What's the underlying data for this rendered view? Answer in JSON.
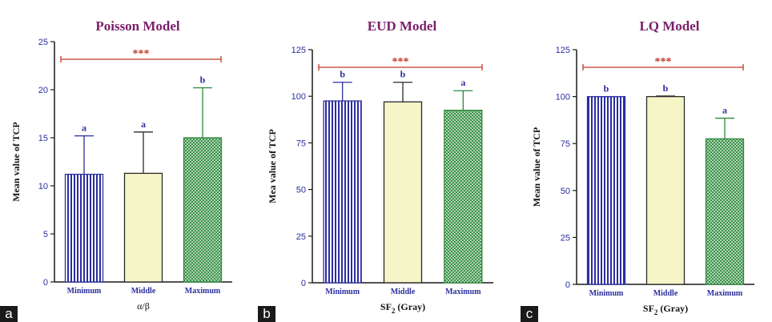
{
  "panels": [
    {
      "letter": "a"
    },
    {
      "letter": "b"
    },
    {
      "letter": "c"
    }
  ],
  "chart_data": [
    {
      "type": "bar",
      "title": "Poisson Model",
      "xlabel": "α/β",
      "ylabel": "Mean value of TCP",
      "categories": [
        "Minimum",
        "Middle",
        "Maximum"
      ],
      "values": [
        11.2,
        11.3,
        15.0
      ],
      "errors": [
        4.0,
        4.3,
        5.2
      ],
      "letters": [
        "a",
        "a",
        "b"
      ],
      "significance": "***",
      "ylim": [
        0,
        25
      ],
      "yticks": [
        0,
        5,
        10,
        15,
        20,
        25
      ],
      "bar_fills": [
        "stripe-blue",
        "plain-cream",
        "hatch-green"
      ],
      "colors": {
        "blue": "#2b2f9e",
        "cream": "#f5f5c8",
        "green": "#2d8a3c",
        "title": "#7a1f6a",
        "significance": "#c0392b"
      }
    },
    {
      "type": "bar",
      "title": "EUD Model",
      "xlabel": "SF2 (Gray)",
      "xlabel_main": "SF",
      "xlabel_sub": "2",
      "xlabel_rest": " (Gray)",
      "ylabel": "Mea value of TCP",
      "categories": [
        "Minimum",
        "Middle",
        "Maximum"
      ],
      "values": [
        97.5,
        97.0,
        92.5
      ],
      "errors": [
        10.0,
        10.5,
        10.5
      ],
      "letters": [
        "b",
        "b",
        "a"
      ],
      "significance": "***",
      "ylim": [
        0,
        125
      ],
      "yticks": [
        0,
        25,
        50,
        75,
        100,
        125
      ],
      "bar_fills": [
        "stripe-blue",
        "plain-cream",
        "hatch-green"
      ],
      "colors": {
        "blue": "#2b2f9e",
        "cream": "#f5f5c8",
        "green": "#2d8a3c",
        "title": "#7a1f6a",
        "significance": "#c0392b"
      }
    },
    {
      "type": "bar",
      "title": "LQ Model",
      "xlabel": "SF2 (Gray)",
      "xlabel_main": "SF",
      "xlabel_sub": "2",
      "xlabel_rest": " (Gray)",
      "ylabel": "Mean value of TCP",
      "categories": [
        "Minimum",
        "Middle",
        "Maximum"
      ],
      "values": [
        100.0,
        100.0,
        77.5
      ],
      "errors": [
        0.0,
        0.3,
        11.0
      ],
      "letters": [
        "b",
        "b",
        "a"
      ],
      "significance": "***",
      "ylim": [
        0,
        125
      ],
      "yticks": [
        0,
        25,
        50,
        75,
        100,
        125
      ],
      "bar_fills": [
        "stripe-blue",
        "plain-cream",
        "hatch-green"
      ],
      "colors": {
        "blue": "#2b2f9e",
        "cream": "#f5f5c8",
        "green": "#2d8a3c",
        "title": "#7a1f6a",
        "significance": "#c0392b"
      }
    }
  ]
}
